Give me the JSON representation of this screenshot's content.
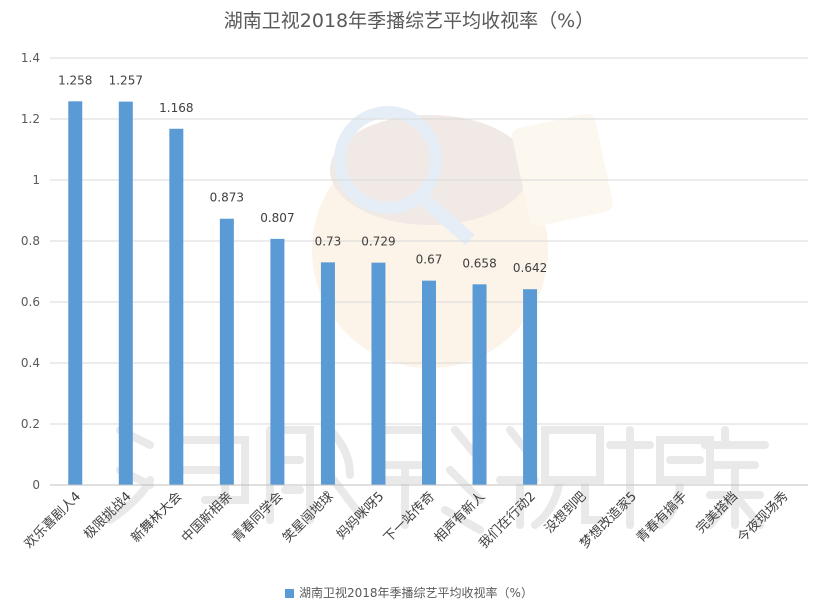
{
  "chart_data": {
    "type": "bar",
    "title": "湖南卫视2018年季播综艺平均收视率（%）",
    "categories": [
      "欢乐喜剧人4",
      "极限挑战4",
      "新舞林大会",
      "中国新相亲",
      "青春同学会",
      "笑星闯地球",
      "妈妈咪呀5",
      "下一站传奇",
      "相声有新人",
      "我们在行动2",
      "没想到吧",
      "梦想改造家5",
      "青春有搞手",
      "完美搭档",
      "今夜现场秀"
    ],
    "series": [
      {
        "name": "湖南卫视2018年季播综艺平均收视率（%）",
        "values": [
          1.258,
          1.257,
          1.168,
          0.873,
          0.807,
          0.73,
          0.729,
          0.67,
          0.658,
          0.642,
          null,
          null,
          null,
          null,
          null
        ],
        "value_labels": [
          "1.258",
          "1.257",
          "1.168",
          "0.873",
          "0.807",
          "0.73",
          "0.729",
          "0.67",
          "0.658",
          "0.642",
          "",
          "",
          "",
          "",
          ""
        ]
      }
    ],
    "y_ticks": [
      "0",
      "0.2",
      "0.4",
      "0.6",
      "0.8",
      "1",
      "1.2",
      "1.4"
    ],
    "ylim": [
      0,
      1.4
    ],
    "grid": true,
    "legend": "bottom",
    "bar_color": "#5b9bd5",
    "grid_color": "#d9d9d9",
    "watermark_text": "河豚影视档案"
  }
}
